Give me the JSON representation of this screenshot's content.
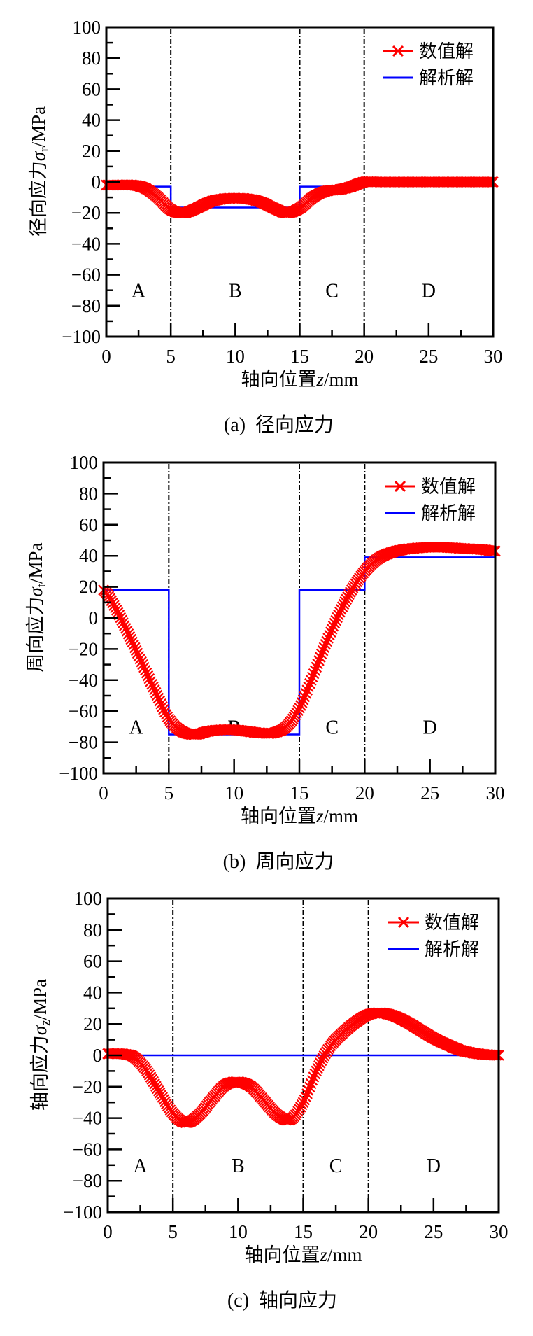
{
  "colors": {
    "numerical": "#ff0000",
    "analytical": "#0000ff",
    "axis": "#000000"
  },
  "chart_data": [
    {
      "type": "line",
      "caption_tag": "(a)",
      "caption_text": "径向应力",
      "xlabel": {
        "prefix": "轴向位置",
        "symbol": "z",
        "unit": "/mm"
      },
      "ylabel": {
        "prefix": "径向应力",
        "symbol": "σ",
        "subscript": "r",
        "unit": "/MPa"
      },
      "xlim": [
        0,
        30
      ],
      "ylim": [
        -100,
        100
      ],
      "xticks": [
        "0",
        "5",
        "10",
        "15",
        "20",
        "25",
        "30"
      ],
      "yticks": [
        "100",
        "80",
        "60",
        "40",
        "20",
        "0",
        "−20",
        "−40",
        "−60",
        "−80",
        "−100"
      ],
      "legend": {
        "placement": "top-right",
        "entries": [
          "数值解",
          "解析解"
        ]
      },
      "regions": [
        "A",
        "B",
        "C",
        "D"
      ],
      "boundaries": [
        5,
        15,
        20
      ],
      "series": [
        {
          "name": "数值解",
          "marker": "x",
          "x": [
            0,
            1,
            2,
            3,
            4,
            5,
            6,
            7,
            8,
            9,
            10,
            11,
            12,
            13,
            14,
            15,
            16,
            17,
            18,
            19,
            20,
            21,
            22,
            23,
            24,
            25,
            26,
            27,
            28,
            29,
            30
          ],
          "y": [
            -2,
            -2,
            -2,
            -4,
            -10,
            -18,
            -20,
            -17,
            -13,
            -11,
            -10.5,
            -11,
            -13,
            -17,
            -20,
            -17,
            -10,
            -6,
            -5,
            -3,
            0,
            0,
            0,
            0,
            0,
            0,
            0,
            0,
            0,
            0,
            0
          ]
        },
        {
          "name": "解析解",
          "marker": "none",
          "x": [
            0,
            5,
            5,
            15,
            15,
            20,
            20,
            30
          ],
          "y": [
            -3,
            -3,
            -16.5,
            -16.5,
            -3,
            -3,
            -1,
            -1
          ]
        }
      ]
    },
    {
      "type": "line",
      "caption_tag": "(b)",
      "caption_text": "周向应力",
      "xlabel": {
        "prefix": "轴向位置",
        "symbol": "z",
        "unit": "/mm"
      },
      "ylabel": {
        "prefix": "周向应力",
        "symbol": "σ",
        "subscript": "t",
        "unit": "/MPa"
      },
      "xlim": [
        0,
        30
      ],
      "ylim": [
        -100,
        100
      ],
      "xticks": [
        "0",
        "5",
        "10",
        "15",
        "20",
        "25",
        "30"
      ],
      "yticks": [
        "100",
        "80",
        "60",
        "40",
        "20",
        "0",
        "−20",
        "−40",
        "−60",
        "−80",
        "−100"
      ],
      "legend": {
        "placement": "top-right",
        "entries": [
          "数值解",
          "解析解"
        ]
      },
      "regions": [
        "A",
        "B",
        "C",
        "D"
      ],
      "boundaries": [
        5,
        15,
        20
      ],
      "series": [
        {
          "name": "数值解",
          "marker": "x",
          "x": [
            0,
            1,
            2,
            3,
            4,
            5,
            6,
            7,
            8,
            9,
            10,
            11,
            12,
            13,
            14,
            15,
            16,
            17,
            18,
            19,
            20,
            21,
            22,
            23,
            24,
            25,
            26,
            27,
            28,
            29,
            30
          ],
          "y": [
            18,
            5,
            -12,
            -30,
            -48,
            -65,
            -73,
            -75,
            -73,
            -72,
            -72,
            -73,
            -74,
            -74,
            -70,
            -58,
            -38,
            -17,
            2,
            18,
            30,
            38,
            42,
            44,
            45,
            45.5,
            45.5,
            45,
            44.5,
            44,
            43
          ]
        },
        {
          "name": "解析解",
          "marker": "none",
          "x": [
            0,
            5,
            5,
            15,
            15,
            20,
            20,
            30
          ],
          "y": [
            18,
            18,
            -75,
            -75,
            18,
            18,
            39,
            39
          ]
        }
      ]
    },
    {
      "type": "line",
      "caption_tag": "(c)",
      "caption_text": "轴向应力",
      "xlabel": {
        "prefix": "轴向位置",
        "symbol": "z",
        "unit": "/mm"
      },
      "ylabel": {
        "prefix": "轴向应力",
        "symbol": "σ",
        "subscript": "z",
        "unit": "/MPa"
      },
      "xlim": [
        0,
        30
      ],
      "ylim": [
        -100,
        100
      ],
      "xticks": [
        "0",
        "5",
        "10",
        "15",
        "20",
        "25",
        "30"
      ],
      "yticks": [
        "100",
        "80",
        "60",
        "40",
        "20",
        "0",
        "−20",
        "−40",
        "−60",
        "−80",
        "−100"
      ],
      "legend": {
        "placement": "top-right",
        "entries": [
          "数值解",
          "解析解"
        ]
      },
      "regions": [
        "A",
        "B",
        "C",
        "D"
      ],
      "boundaries": [
        5,
        15,
        20
      ],
      "series": [
        {
          "name": "数值解",
          "marker": "x",
          "x": [
            0,
            1,
            2,
            3,
            4,
            5,
            6,
            7,
            8,
            9,
            10,
            11,
            12,
            13,
            14,
            15,
            16,
            17,
            18,
            19,
            20,
            21,
            22,
            23,
            24,
            25,
            26,
            27,
            28,
            29,
            30
          ],
          "y": [
            1,
            1,
            -1,
            -10,
            -24,
            -37,
            -43,
            -38,
            -28,
            -19,
            -17,
            -20,
            -29,
            -38,
            -41,
            -30,
            -10,
            5,
            14,
            21,
            26,
            27,
            25,
            21,
            16,
            11,
            7,
            3.5,
            1.5,
            0.5,
            0
          ]
        },
        {
          "name": "解析解",
          "marker": "none",
          "x": [
            0,
            30
          ],
          "y": [
            0,
            0
          ]
        }
      ]
    }
  ]
}
